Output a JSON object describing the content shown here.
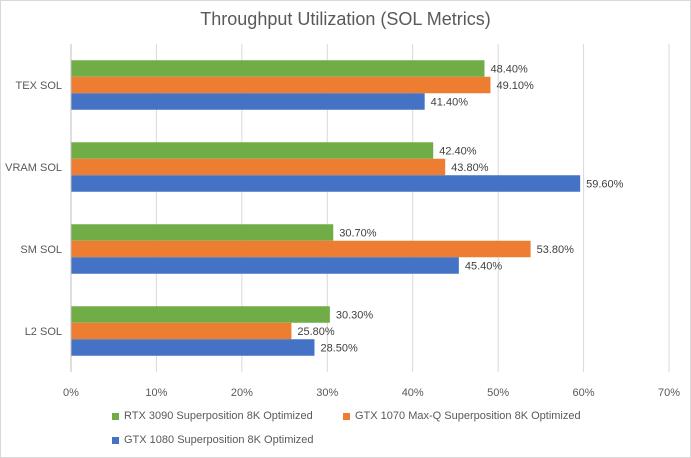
{
  "chart_data": {
    "type": "bar",
    "orientation": "horizontal",
    "title": "Throughput Utilization (SOL Metrics)",
    "categories": [
      "TEX SOL",
      "VRAM SOL",
      "SM SOL",
      "L2 SOL"
    ],
    "series": [
      {
        "name": "RTX 3090 Superposition 8K Optimized",
        "color": "#70ad47",
        "values": [
          48.4,
          42.4,
          30.7,
          30.3
        ],
        "labels": [
          "48.40%",
          "42.40%",
          "30.70%",
          "30.30%"
        ]
      },
      {
        "name": "GTX 1070 Max-Q Superposition 8K Optimized",
        "color": "#ed7d31",
        "values": [
          49.1,
          43.8,
          53.8,
          25.8
        ],
        "labels": [
          "49.10%",
          "43.80%",
          "53.80%",
          "25.80%"
        ]
      },
      {
        "name": "GTX 1080 Superposition 8K Optimized",
        "color": "#4472c4",
        "values": [
          41.4,
          59.6,
          45.4,
          28.5
        ],
        "labels": [
          "41.40%",
          "59.60%",
          "45.40%",
          "28.50%"
        ]
      }
    ],
    "xlim": [
      0,
      70
    ],
    "xticks": [
      "0%",
      "10%",
      "20%",
      "30%",
      "40%",
      "50%",
      "60%",
      "70%"
    ],
    "grid": true,
    "legend_position": "bottom"
  }
}
